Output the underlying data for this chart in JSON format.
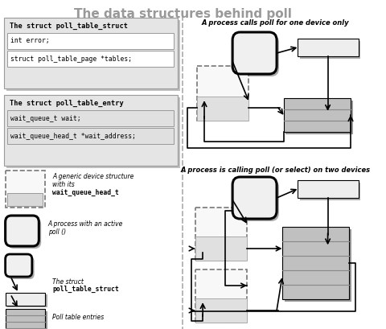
{
  "title": "The data structures behind poll",
  "title_color": "#999999",
  "title_fontsize": 11,
  "bg_color": "#ffffff",
  "struct1_title": "The struct poll_table_struct",
  "struct1_fields": [
    "int error;",
    "struct poll_table_page *tables;"
  ],
  "struct2_title": "The struct poll_table_entry",
  "struct2_fields": [
    "wait_queue_t wait;",
    "wait_queue_head_t *wait_address;"
  ],
  "scenario1_title": "A process calls poll for one device only",
  "scenario2_title": "A process is calling poll (or select) on two devices"
}
